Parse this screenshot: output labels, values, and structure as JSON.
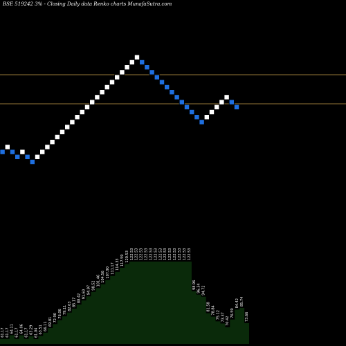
{
  "chart_data": {
    "type": "renko",
    "title": "BSE 519242  3% -  Closing Daily data  Renko  charts MunafaSutra.com",
    "colors": {
      "background": "#000000",
      "up_brick": "#ffffff",
      "down_brick": "#1e6fe0",
      "reference_lines": "#c8a04a",
      "area": "#0a2a0a"
    },
    "reference_lines": [
      "upper",
      "lower"
    ],
    "bricks": [
      {
        "dir": "down",
        "level": 0
      },
      {
        "dir": "up",
        "level": 1
      },
      {
        "dir": "down",
        "level": 0
      },
      {
        "dir": "down",
        "level": -1
      },
      {
        "dir": "up",
        "level": 0
      },
      {
        "dir": "down",
        "level": -1
      },
      {
        "dir": "down",
        "level": -2
      },
      {
        "dir": "up",
        "level": -1
      },
      {
        "dir": "up",
        "level": 0
      },
      {
        "dir": "up",
        "level": 1
      },
      {
        "dir": "up",
        "level": 2
      },
      {
        "dir": "up",
        "level": 3
      },
      {
        "dir": "up",
        "level": 4
      },
      {
        "dir": "up",
        "level": 5
      },
      {
        "dir": "up",
        "level": 6
      },
      {
        "dir": "up",
        "level": 7
      },
      {
        "dir": "up",
        "level": 8
      },
      {
        "dir": "up",
        "level": 9
      },
      {
        "dir": "up",
        "level": 10
      },
      {
        "dir": "up",
        "level": 11
      },
      {
        "dir": "up",
        "level": 12
      },
      {
        "dir": "up",
        "level": 13
      },
      {
        "dir": "up",
        "level": 14
      },
      {
        "dir": "up",
        "level": 15
      },
      {
        "dir": "up",
        "level": 16
      },
      {
        "dir": "up",
        "level": 17
      },
      {
        "dir": "up",
        "level": 18
      },
      {
        "dir": "up",
        "level": 19
      },
      {
        "dir": "down",
        "level": 18
      },
      {
        "dir": "down",
        "level": 17
      },
      {
        "dir": "down",
        "level": 16
      },
      {
        "dir": "down",
        "level": 15
      },
      {
        "dir": "down",
        "level": 14
      },
      {
        "dir": "down",
        "level": 13
      },
      {
        "dir": "down",
        "level": 12
      },
      {
        "dir": "down",
        "level": 11
      },
      {
        "dir": "down",
        "level": 10
      },
      {
        "dir": "down",
        "level": 9
      },
      {
        "dir": "down",
        "level": 8
      },
      {
        "dir": "down",
        "level": 7
      },
      {
        "dir": "down",
        "level": 6
      },
      {
        "dir": "up",
        "level": 7
      },
      {
        "dir": "up",
        "level": 8
      },
      {
        "dir": "up",
        "level": 9
      },
      {
        "dir": "up",
        "level": 10
      },
      {
        "dir": "up",
        "level": 11
      },
      {
        "dir": "down",
        "level": 10
      },
      {
        "dir": "down",
        "level": 9
      }
    ],
    "price_labels": [
      "61.17",
      "61.17",
      "64.11",
      "61.17",
      "64.06",
      "61.17",
      "63.29",
      "61.04",
      "63.51",
      "66.11",
      "69.81",
      "72.90",
      "76.06",
      "79.11",
      "82.03",
      "85.17",
      "88.42",
      "91.60",
      "94.97",
      "98.52",
      "101.46",
      "104.56",
      "107.90",
      "111.17",
      "114.33",
      "117.59",
      "120.53",
      "122.53",
      "122.53",
      "122.53",
      "122.53",
      "122.53",
      "122.53",
      "122.53",
      "122.53",
      "122.53",
      "122.53",
      "122.53",
      "122.53",
      "122.53",
      "98.96",
      "96.34",
      "94.72",
      "81.58",
      "78.84",
      "75.12",
      "73.37",
      "70.42",
      "76.59",
      "84.42",
      "85.74",
      "73.66"
    ]
  }
}
